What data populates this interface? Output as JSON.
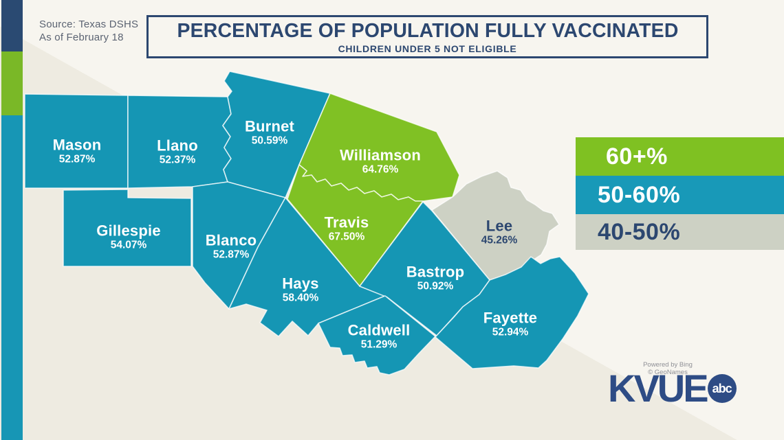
{
  "source": {
    "line1": "Source: Texas DSHS",
    "line2": "As of February 18"
  },
  "title": {
    "main": "PERCENTAGE OF POPULATION FULLY VACCINATED",
    "subtitle": "CHILDREN UNDER 5 NOT ELIGIBLE"
  },
  "legend": {
    "items": [
      {
        "label": "60+%",
        "color": "#7fc122",
        "text_color": "#ffffff"
      },
      {
        "label": "50-60%",
        "color": "#1899b8",
        "text_color": "#ffffff"
      },
      {
        "label": "40-50%",
        "color": "#cdd1c4",
        "text_color": "#2c4770"
      }
    ]
  },
  "chart_data": {
    "type": "choropleth_map",
    "region": "Central Texas counties",
    "unit": "% of population fully vaccinated",
    "legend_ranges": [
      "60+%",
      "50-60%",
      "40-50%"
    ],
    "counties": [
      {
        "name": "Mason",
        "value": 52.87,
        "value_label": "52.87%",
        "range": "50-60%"
      },
      {
        "name": "Llano",
        "value": 52.37,
        "value_label": "52.37%",
        "range": "50-60%"
      },
      {
        "name": "Burnet",
        "value": 50.59,
        "value_label": "50.59%",
        "range": "50-60%"
      },
      {
        "name": "Williamson",
        "value": 64.76,
        "value_label": "64.76%",
        "range": "60+%"
      },
      {
        "name": "Gillespie",
        "value": 54.07,
        "value_label": "54.07%",
        "range": "50-60%"
      },
      {
        "name": "Blanco",
        "value": 52.87,
        "value_label": "52.87%",
        "range": "50-60%"
      },
      {
        "name": "Travis",
        "value": 67.5,
        "value_label": "67.50%",
        "range": "60+%"
      },
      {
        "name": "Lee",
        "value": 45.26,
        "value_label": "45.26%",
        "range": "40-50%"
      },
      {
        "name": "Hays",
        "value": 58.4,
        "value_label": "58.40%",
        "range": "50-60%"
      },
      {
        "name": "Bastrop",
        "value": 50.92,
        "value_label": "50.92%",
        "range": "50-60%"
      },
      {
        "name": "Caldwell",
        "value": 51.29,
        "value_label": "51.29%",
        "range": "50-60%"
      },
      {
        "name": "Fayette",
        "value": 52.94,
        "value_label": "52.94%",
        "range": "50-60%"
      }
    ]
  },
  "attribution": {
    "line1": "Powered by Bing",
    "line2": "© GeoNames"
  },
  "branding": {
    "station": "KVUE",
    "network_badge": "abc"
  },
  "theme": {
    "navy": "#2c4770",
    "teal": "#1596b4",
    "green": "#80c124",
    "gray": "#cdd1c4",
    "stripe_navy": "#2a4a72",
    "stripe_green": "#7ab827",
    "stripe_teal": "#1796b5",
    "label_white": "#ffffff",
    "logo_navy": "#2e4c85"
  }
}
